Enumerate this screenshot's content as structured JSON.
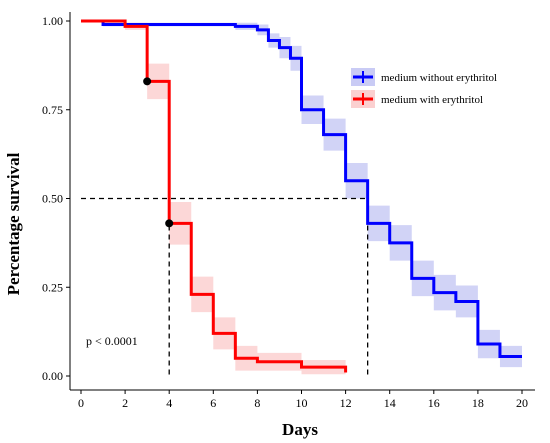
{
  "chart_data": {
    "type": "line",
    "subtype": "kaplan-meier survival curve",
    "xlabel": "Days",
    "ylabel": "Percentage survival",
    "xlim": [
      0,
      20
    ],
    "ylim": [
      0,
      1
    ],
    "x_ticks": [
      0,
      2,
      4,
      6,
      8,
      10,
      12,
      14,
      16,
      18,
      20
    ],
    "y_ticks": [
      0.0,
      0.25,
      0.5,
      0.75,
      1.0
    ],
    "x_tick_labels": [
      "0",
      "2",
      "4",
      "6",
      "8",
      "10",
      "12",
      "14",
      "16",
      "18",
      "20"
    ],
    "y_tick_labels": [
      "0.00",
      "0.25",
      "0.50",
      "0.75",
      "1.00"
    ],
    "grid": false,
    "legend_position": "top-right",
    "annotation": "p < 0.0001",
    "median_line": {
      "y": 0.5,
      "medians_x": [
        4,
        13
      ],
      "style": "dashed"
    },
    "censor_points": [
      {
        "series": "medium with erythritol",
        "x": 3,
        "y": 0.83
      },
      {
        "series": "medium with erythritol",
        "x": 4,
        "y": 0.43
      }
    ],
    "series": [
      {
        "name": "medium without erythritol",
        "color": "#0000ff",
        "band_color": "#c9cbf5",
        "steps": [
          [
            0,
            1.0
          ],
          [
            1,
            0.99
          ],
          [
            7,
            0.985
          ],
          [
            8,
            0.975
          ],
          [
            8.5,
            0.945
          ],
          [
            9,
            0.925
          ],
          [
            9.5,
            0.895
          ],
          [
            10,
            0.75
          ],
          [
            11,
            0.68
          ],
          [
            12,
            0.55
          ],
          [
            13,
            0.43
          ],
          [
            14,
            0.375
          ],
          [
            15,
            0.275
          ],
          [
            16,
            0.235
          ],
          [
            17,
            0.21
          ],
          [
            18,
            0.09
          ],
          [
            19,
            0.055
          ],
          [
            20,
            0.055
          ]
        ],
        "band_half_width": [
          0.0,
          0.005,
          0.01,
          0.015,
          0.02,
          0.03,
          0.035,
          0.04,
          0.045,
          0.05,
          0.05,
          0.05,
          0.05,
          0.05,
          0.045,
          0.04,
          0.03,
          0.03
        ]
      },
      {
        "name": "medium with erythritol",
        "color": "#ff0000",
        "band_color": "#fbd0d0",
        "steps": [
          [
            0,
            1.0
          ],
          [
            2,
            0.985
          ],
          [
            3,
            0.83
          ],
          [
            4,
            0.43
          ],
          [
            5,
            0.23
          ],
          [
            6,
            0.12
          ],
          [
            7,
            0.05
          ],
          [
            8,
            0.04
          ],
          [
            10,
            0.025
          ],
          [
            12,
            0.01
          ],
          [
            12,
            0.01
          ]
        ],
        "band_half_width": [
          0.0,
          0.01,
          0.05,
          0.06,
          0.05,
          0.045,
          0.035,
          0.025,
          0.02,
          0.015,
          0.015
        ]
      }
    ]
  }
}
